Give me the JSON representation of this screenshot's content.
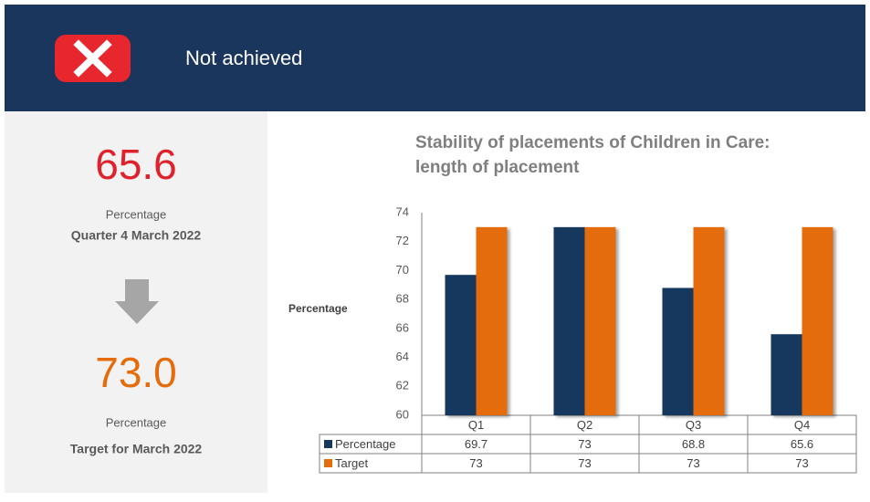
{
  "header": {
    "status": "Not achieved"
  },
  "kpi": {
    "actual": "65.6",
    "actual_unit": "Percentage",
    "actual_period": "Quarter 4 March 2022",
    "target": "73.0",
    "target_unit": "Percentage",
    "target_period": "Target for March 2022"
  },
  "chart_data": {
    "type": "bar",
    "title": [
      "Stability of placements of Children in Care:",
      "length of placement"
    ],
    "y_label": "Percentage",
    "categories": [
      "Q1",
      "Q2",
      "Q3",
      "Q4"
    ],
    "series": [
      {
        "name": "Percentage",
        "color": "#17375e",
        "values": [
          69.7,
          73,
          68.8,
          65.6
        ]
      },
      {
        "name": "Target",
        "color": "#e46c0a",
        "values": [
          73,
          73,
          73,
          73
        ]
      }
    ],
    "ylim": [
      60,
      74
    ],
    "yticks": [
      60,
      62,
      64,
      66,
      68,
      70,
      72,
      74
    ],
    "grid": false
  }
}
